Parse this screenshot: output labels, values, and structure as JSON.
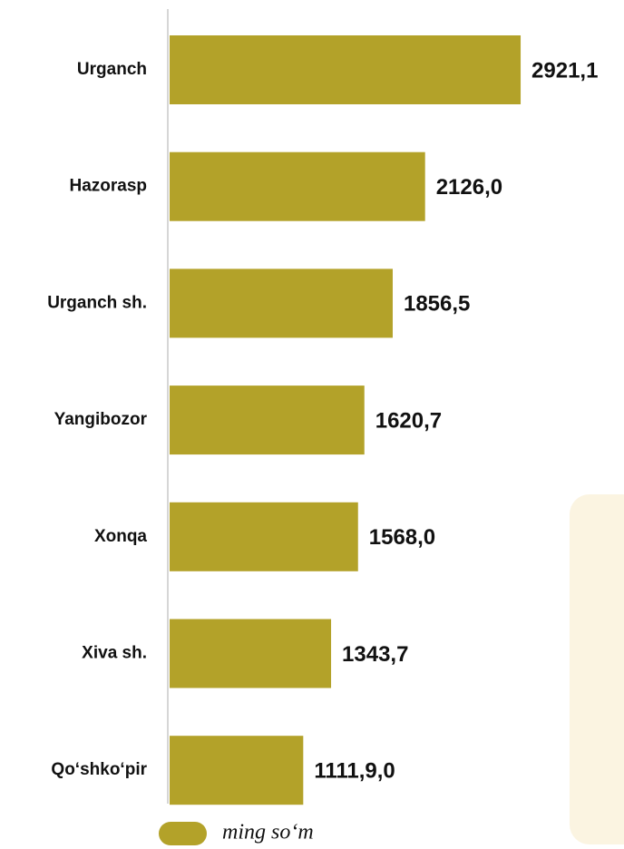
{
  "chart_data": {
    "type": "bar",
    "orientation": "horizontal",
    "categories": [
      "Urganch",
      "Hazorasp",
      "Urganch sh.",
      "Yangibozor",
      "Xonqa",
      "Xiva sh.",
      "Qo‘shko‘pir"
    ],
    "series": [
      {
        "name": "ming so‘m",
        "color": "#b3a229",
        "values": [
          2921.1,
          2126.0,
          1856.5,
          1620.7,
          1568.0,
          1343.7,
          1111.9
        ],
        "value_labels": [
          "2921,1",
          "2126,0",
          "1856,5",
          "1620,7",
          "1568,0",
          "1343,7",
          "1111,9,0"
        ]
      }
    ]
  }
}
